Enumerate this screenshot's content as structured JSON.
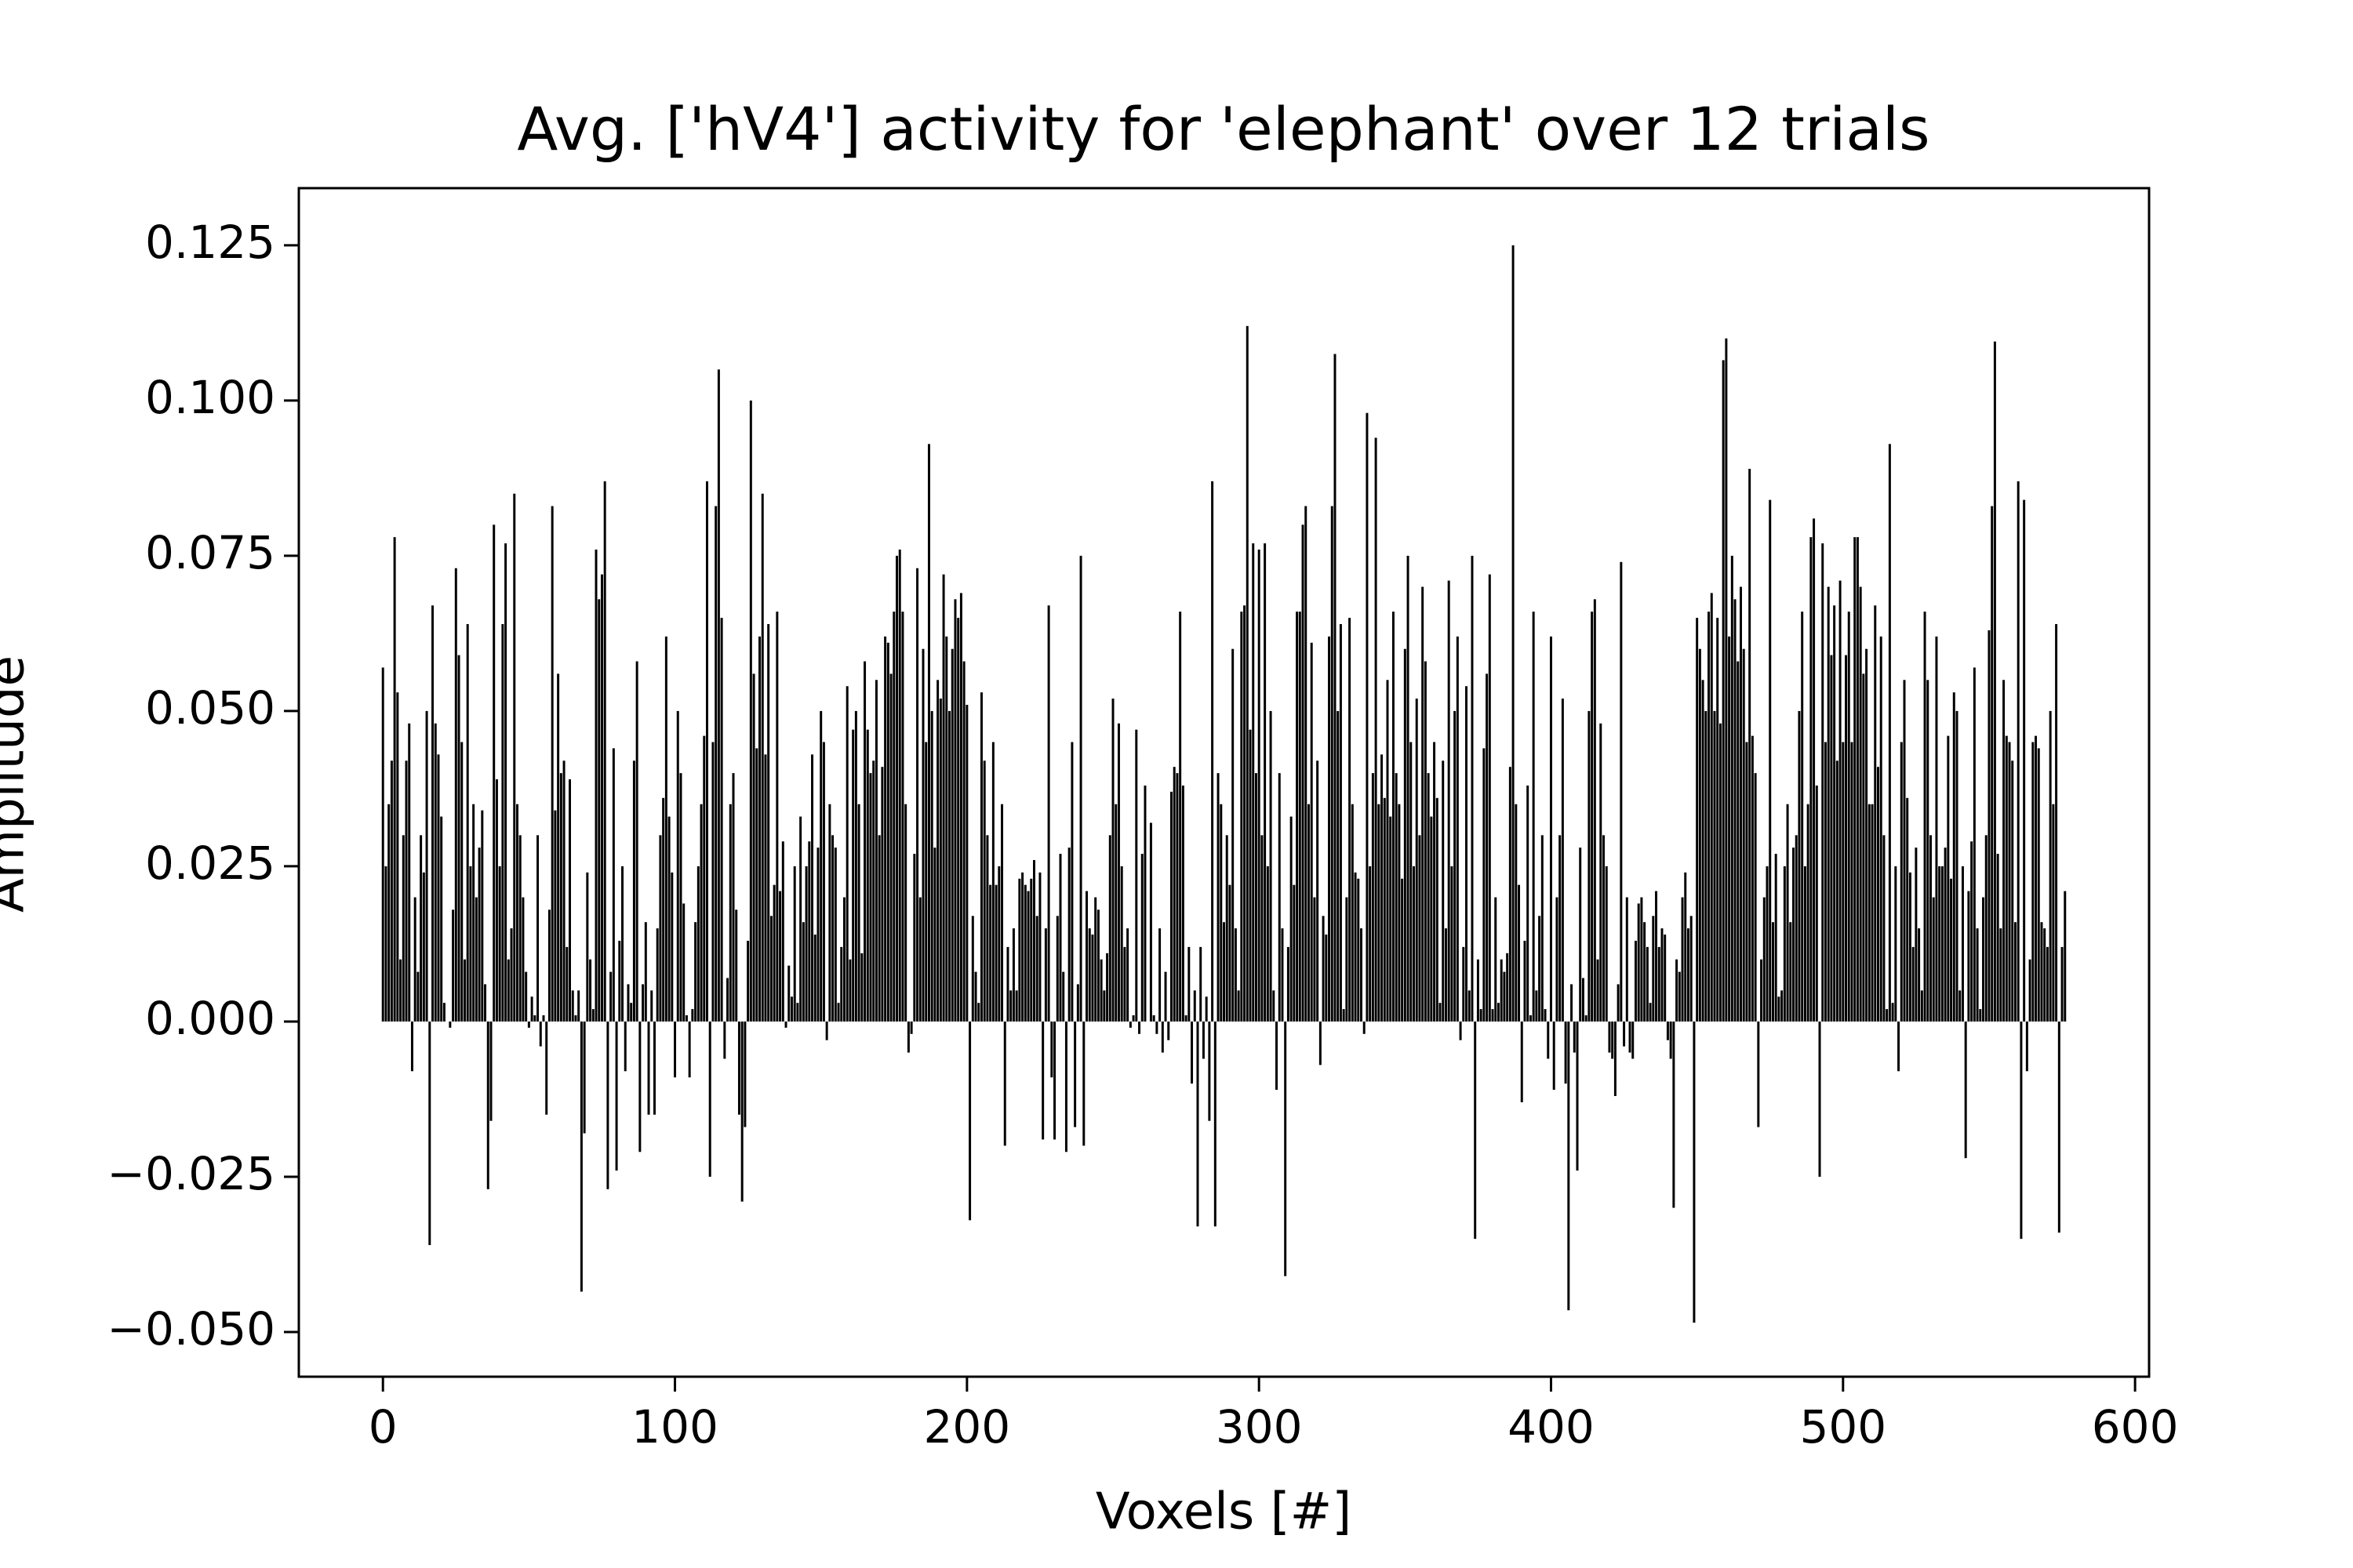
{
  "chart_data": {
    "type": "bar",
    "title": "Avg. ['hV4'] activity for 'elephant' over 12 trials",
    "xlabel": "Voxels [#]",
    "ylabel": "Amplitude",
    "color": "#000000",
    "xlim": [
      -28.8,
      604.8
    ],
    "ylim": [
      -0.0572,
      0.1342
    ],
    "xticks": [
      0,
      100,
      200,
      300,
      400,
      500,
      600
    ],
    "yticks": [
      {
        "value": -0.05,
        "label": "−0.050"
      },
      {
        "value": -0.025,
        "label": "−0.025"
      },
      {
        "value": 0,
        "label": "0.000"
      },
      0.025,
      {
        "value": 0.05,
        "label": "0.050"
      },
      0.075,
      {
        "value": 0.1,
        "label": "0.100"
      },
      0.125
    ],
    "x": [
      0,
      1,
      2,
      3,
      4,
      5,
      6,
      7,
      8,
      9,
      10,
      11,
      12,
      13,
      14,
      15,
      16,
      17,
      18,
      19,
      20,
      21,
      22,
      23,
      24,
      25,
      26,
      27,
      28,
      29,
      30,
      31,
      32,
      33,
      34,
      35,
      36,
      37,
      38,
      39,
      40,
      41,
      42,
      43,
      44,
      45,
      46,
      47,
      48,
      49,
      50,
      51,
      52,
      53,
      54,
      55,
      56,
      57,
      58,
      59,
      60,
      61,
      62,
      63,
      64,
      65,
      66,
      67,
      68,
      69,
      70,
      71,
      72,
      73,
      74,
      75,
      76,
      77,
      78,
      79,
      80,
      81,
      82,
      83,
      84,
      85,
      86,
      87,
      88,
      89,
      90,
      91,
      92,
      93,
      94,
      95,
      96,
      97,
      98,
      99,
      100,
      101,
      102,
      103,
      104,
      105,
      106,
      107,
      108,
      109,
      110,
      111,
      112,
      113,
      114,
      115,
      116,
      117,
      118,
      119,
      120,
      121,
      122,
      123,
      124,
      125,
      126,
      127,
      128,
      129,
      130,
      131,
      132,
      133,
      134,
      135,
      136,
      137,
      138,
      139,
      140,
      141,
      142,
      143,
      144,
      145,
      146,
      147,
      148,
      149,
      150,
      151,
      152,
      153,
      154,
      155,
      156,
      157,
      158,
      159,
      160,
      161,
      162,
      163,
      164,
      165,
      166,
      167,
      168,
      169,
      170,
      171,
      172,
      173,
      174,
      175,
      176,
      177,
      178,
      179,
      180,
      181,
      182,
      183,
      184,
      185,
      186,
      187,
      188,
      189,
      190,
      191,
      192,
      193,
      194,
      195,
      196,
      197,
      198,
      199,
      200,
      201,
      202,
      203,
      204,
      205,
      206,
      207,
      208,
      209,
      210,
      211,
      212,
      213,
      214,
      215,
      216,
      217,
      218,
      219,
      220,
      221,
      222,
      223,
      224,
      225,
      226,
      227,
      228,
      229,
      230,
      231,
      232,
      233,
      234,
      235,
      236,
      237,
      238,
      239,
      240,
      241,
      242,
      243,
      244,
      245,
      246,
      247,
      248,
      249,
      250,
      251,
      252,
      253,
      254,
      255,
      256,
      257,
      258,
      259,
      260,
      261,
      262,
      263,
      264,
      265,
      266,
      267,
      268,
      269,
      270,
      271,
      272,
      273,
      274,
      275,
      276,
      277,
      278,
      279,
      280,
      281,
      282,
      283,
      284,
      285,
      286,
      287,
      288,
      289,
      290,
      291,
      292,
      293,
      294,
      295,
      296,
      297,
      298,
      299,
      300,
      301,
      302,
      303,
      304,
      305,
      306,
      307,
      308,
      309,
      310,
      311,
      312,
      313,
      314,
      315,
      316,
      317,
      318,
      319,
      320,
      321,
      322,
      323,
      324,
      325,
      326,
      327,
      328,
      329,
      330,
      331,
      332,
      333,
      334,
      335,
      336,
      337,
      338,
      339,
      340,
      341,
      342,
      343,
      344,
      345,
      346,
      347,
      348,
      349,
      350,
      351,
      352,
      353,
      354,
      355,
      356,
      357,
      358,
      359,
      360,
      361,
      362,
      363,
      364,
      365,
      366,
      367,
      368,
      369,
      370,
      371,
      372,
      373,
      374,
      375,
      376,
      377,
      378,
      379,
      380,
      381,
      382,
      383,
      384,
      385,
      386,
      387,
      388,
      389,
      390,
      391,
      392,
      393,
      394,
      395,
      396,
      397,
      398,
      399,
      400,
      401,
      402,
      403,
      404,
      405,
      406,
      407,
      408,
      409,
      410,
      411,
      412,
      413,
      414,
      415,
      416,
      417,
      418,
      419,
      420,
      421,
      422,
      423,
      424,
      425,
      426,
      427,
      428,
      429,
      430,
      431,
      432,
      433,
      434,
      435,
      436,
      437,
      438,
      439,
      440,
      441,
      442,
      443,
      444,
      445,
      446,
      447,
      448,
      449,
      450,
      451,
      452,
      453,
      454,
      455,
      456,
      457,
      458,
      459,
      460,
      461,
      462,
      463,
      464,
      465,
      466,
      467,
      468,
      469,
      470,
      471,
      472,
      473,
      474,
      475,
      476,
      477,
      478,
      479,
      480,
      481,
      482,
      483,
      484,
      485,
      486,
      487,
      488,
      489,
      490,
      491,
      492,
      493,
      494,
      495,
      496,
      497,
      498,
      499,
      500,
      501,
      502,
      503,
      504,
      505,
      506,
      507,
      508,
      509,
      510,
      511,
      512,
      513,
      514,
      515,
      516,
      517,
      518,
      519,
      520,
      521,
      522,
      523,
      524,
      525,
      526,
      527,
      528,
      529,
      530,
      531,
      532,
      533,
      534,
      535,
      536,
      537,
      538,
      539,
      540,
      541,
      542,
      543,
      544,
      545,
      546,
      547,
      548,
      549,
      550,
      551,
      552,
      553,
      554,
      555,
      556,
      557,
      558,
      559,
      560,
      561,
      562,
      563,
      564,
      565,
      566,
      567,
      568,
      569,
      570,
      571,
      572,
      573,
      574,
      575,
      576
    ],
    "values": [
      0.057,
      0.025,
      0.035,
      0.042,
      0.078,
      0.053,
      0.01,
      0.03,
      0.042,
      0.048,
      -0.008,
      0.02,
      0.008,
      0.03,
      0.024,
      0.05,
      -0.036,
      0.067,
      0.048,
      0.043,
      0.033,
      0.003,
      0,
      -0.001,
      0.018,
      0.073,
      0.059,
      0.045,
      0.01,
      0.064,
      0.025,
      0.035,
      0.02,
      0.028,
      0.034,
      0.006,
      -0.027,
      -0.016,
      0.08,
      0.039,
      0.025,
      0.064,
      0.077,
      0.01,
      0.015,
      0.085,
      0.035,
      0.03,
      0.02,
      0.008,
      -0.001,
      0.004,
      0.001,
      0.03,
      -0.004,
      0.001,
      -0.015,
      0.018,
      0.083,
      0.034,
      0.056,
      0.04,
      0.042,
      0.012,
      0.039,
      0.005,
      0.001,
      0.005,
      -0.0435,
      -0.018,
      0.024,
      0.01,
      0.002,
      0.076,
      0.068,
      0.072,
      0.087,
      -0.027,
      0.008,
      0.044,
      -0.024,
      0.013,
      0.025,
      -0.008,
      0.006,
      0.003,
      0.042,
      0.058,
      -0.021,
      0.006,
      0.016,
      -0.015,
      0.005,
      -0.015,
      0.015,
      0.03,
      0.036,
      0.062,
      0.033,
      0.024,
      -0.009,
      0.05,
      0.04,
      0.019,
      0.001,
      -0.009,
      0.002,
      0.016,
      0.025,
      0.035,
      0.046,
      0.087,
      -0.025,
      0.045,
      0.083,
      0.105,
      0.065,
      -0.006,
      0.007,
      0.035,
      0.04,
      0.018,
      -0.015,
      -0.029,
      -0.017,
      0.013,
      0.1,
      0.056,
      0.044,
      0.062,
      0.085,
      0.043,
      0.064,
      0.017,
      0.022,
      0.066,
      0.021,
      0.029,
      -0.001,
      0.009,
      0.004,
      0.025,
      0.003,
      0.033,
      0.016,
      0.025,
      0.029,
      0.043,
      0.014,
      0.028,
      0.05,
      0.045,
      -0.003,
      0.035,
      0.03,
      0.028,
      0.003,
      0.012,
      0.02,
      0.054,
      0.01,
      0.047,
      0.05,
      0.035,
      0.011,
      0.058,
      0.047,
      0.04,
      0.042,
      0.055,
      0.03,
      0.041,
      0.062,
      0.061,
      0.056,
      0.066,
      0.075,
      0.076,
      0.066,
      0.035,
      -0.005,
      -0.002,
      0.027,
      0.073,
      0.02,
      0.06,
      0.045,
      0.093,
      0.05,
      0.028,
      0.055,
      0.052,
      0.072,
      0.062,
      0.05,
      0.06,
      0.068,
      0.065,
      0.069,
      0.058,
      0.051,
      -0.032,
      0.017,
      0.008,
      0.003,
      0.053,
      0.042,
      0.03,
      0.022,
      0.045,
      0.022,
      0.025,
      0.035,
      -0.02,
      0.012,
      0.005,
      0.015,
      0.005,
      0.023,
      0.024,
      0.022,
      0.021,
      0.023,
      0.026,
      0.017,
      0.024,
      -0.019,
      0.015,
      0.067,
      -0.009,
      -0.019,
      0.017,
      0.027,
      0.008,
      -0.021,
      0.028,
      0.045,
      -0.017,
      0.006,
      0.075,
      -0.02,
      0.021,
      0.015,
      0.014,
      0.02,
      0.018,
      0.01,
      0.005,
      0.011,
      0.03,
      0.052,
      0.035,
      0.048,
      0.025,
      0.012,
      0.015,
      -0.001,
      0.001,
      0.047,
      -0.002,
      0.027,
      0.038,
      0,
      0.032,
      0.001,
      -0.002,
      0.015,
      -0.005,
      0.008,
      -0.003,
      0.037,
      0.041,
      0.04,
      0.066,
      0.038,
      0.001,
      0.012,
      -0.01,
      0.005,
      -0.033,
      0.012,
      -0.006,
      0.004,
      -0.016,
      0.087,
      -0.033,
      0.04,
      0.035,
      0.016,
      0.03,
      0.022,
      0.06,
      0.015,
      0.005,
      0.066,
      0.067,
      0.112,
      0.047,
      0.077,
      0.04,
      0.076,
      0.03,
      0.077,
      0.025,
      0.05,
      0.005,
      -0.011,
      0.04,
      0.015,
      -0.041,
      0.012,
      0.033,
      0.022,
      0.066,
      0.066,
      0.08,
      0.083,
      0.035,
      0.061,
      0.02,
      0.042,
      -0.007,
      0.017,
      0.014,
      0.062,
      0.083,
      0.1075,
      0.05,
      0.064,
      0.002,
      0.02,
      0.065,
      0.035,
      0.024,
      0.023,
      0.015,
      -0.002,
      0.098,
      0.025,
      0.04,
      0.094,
      0.035,
      0.043,
      0.036,
      0.055,
      0.033,
      0.066,
      0.04,
      0.035,
      0.023,
      0.06,
      0.075,
      0.045,
      0.025,
      0.052,
      0.03,
      0.07,
      0.058,
      0.04,
      0.033,
      0.045,
      0.036,
      0.003,
      0.042,
      0.015,
      0.071,
      0.025,
      0.05,
      0.062,
      -0.003,
      0.012,
      0.054,
      0.005,
      0.075,
      -0.035,
      0.01,
      0.002,
      0.044,
      0.056,
      0.072,
      0.002,
      0.02,
      0.003,
      0.01,
      0.008,
      0.011,
      0.041,
      0.125,
      0.035,
      0.022,
      -0.013,
      0.013,
      0.038,
      0.001,
      0.066,
      0.005,
      0.017,
      0.03,
      0.002,
      -0.006,
      0.062,
      -0.011,
      0.02,
      0.03,
      0.052,
      -0.01,
      -0.0465,
      0.006,
      -0.005,
      -0.024,
      0.028,
      0.007,
      0.001,
      0.05,
      0.066,
      0.068,
      0.01,
      0.048,
      0.03,
      0.025,
      -0.005,
      -0.006,
      -0.012,
      0.006,
      0.074,
      -0.004,
      0.02,
      -0.005,
      -0.006,
      0.013,
      0.019,
      0.02,
      0.016,
      0.012,
      0.003,
      0.017,
      0.021,
      0.012,
      0.015,
      0.014,
      -0.003,
      -0.006,
      -0.03,
      0.01,
      0.008,
      0.02,
      0.024,
      0.015,
      0.017,
      -0.0485,
      0.065,
      0.06,
      0.055,
      0.05,
      0.066,
      0.069,
      0.05,
      0.065,
      0.048,
      0.1065,
      0.11,
      0.062,
      0.075,
      0.068,
      0.058,
      0.07,
      0.06,
      0.045,
      0.089,
      0.046,
      0.04,
      -0.017,
      0.01,
      0.02,
      0.025,
      0.084,
      0.016,
      0.027,
      0.004,
      0.005,
      0.025,
      0.035,
      0.016,
      0.028,
      0.03,
      0.05,
      0.066,
      0.025,
      0.035,
      0.078,
      0.081,
      0.038,
      -0.025,
      0.077,
      0.045,
      0.07,
      0.059,
      0.067,
      0.042,
      0.071,
      0.045,
      0.059,
      0.066,
      0.045,
      0.078,
      0.078,
      0.07,
      0.056,
      0.06,
      0.035,
      0.035,
      0.067,
      0.041,
      0.062,
      0.03,
      0.002,
      0.093,
      0.003,
      0.025,
      -0.008,
      0.045,
      0.055,
      0.036,
      0.024,
      0.012,
      0.028,
      0.015,
      0.005,
      0.066,
      0.055,
      0.03,
      0.02,
      0.062,
      0.025,
      0.025,
      0.028,
      0.046,
      0.023,
      0.053,
      0.05,
      0.005,
      0.025,
      -0.022,
      0.021,
      0.029,
      0.057,
      0.015,
      0.002,
      0.02,
      0.03,
      0.063,
      0.083,
      0.1095,
      0.027,
      0.015,
      0.055,
      0.046,
      0.045,
      0.042,
      0.016,
      0.087,
      -0.035,
      0.084,
      -0.008,
      0.01,
      0.045,
      0.046,
      0.044,
      0.016,
      0.015,
      0.012,
      0.05,
      0.035,
      0.064,
      -0.034,
      0.012,
      0.021
    ]
  }
}
